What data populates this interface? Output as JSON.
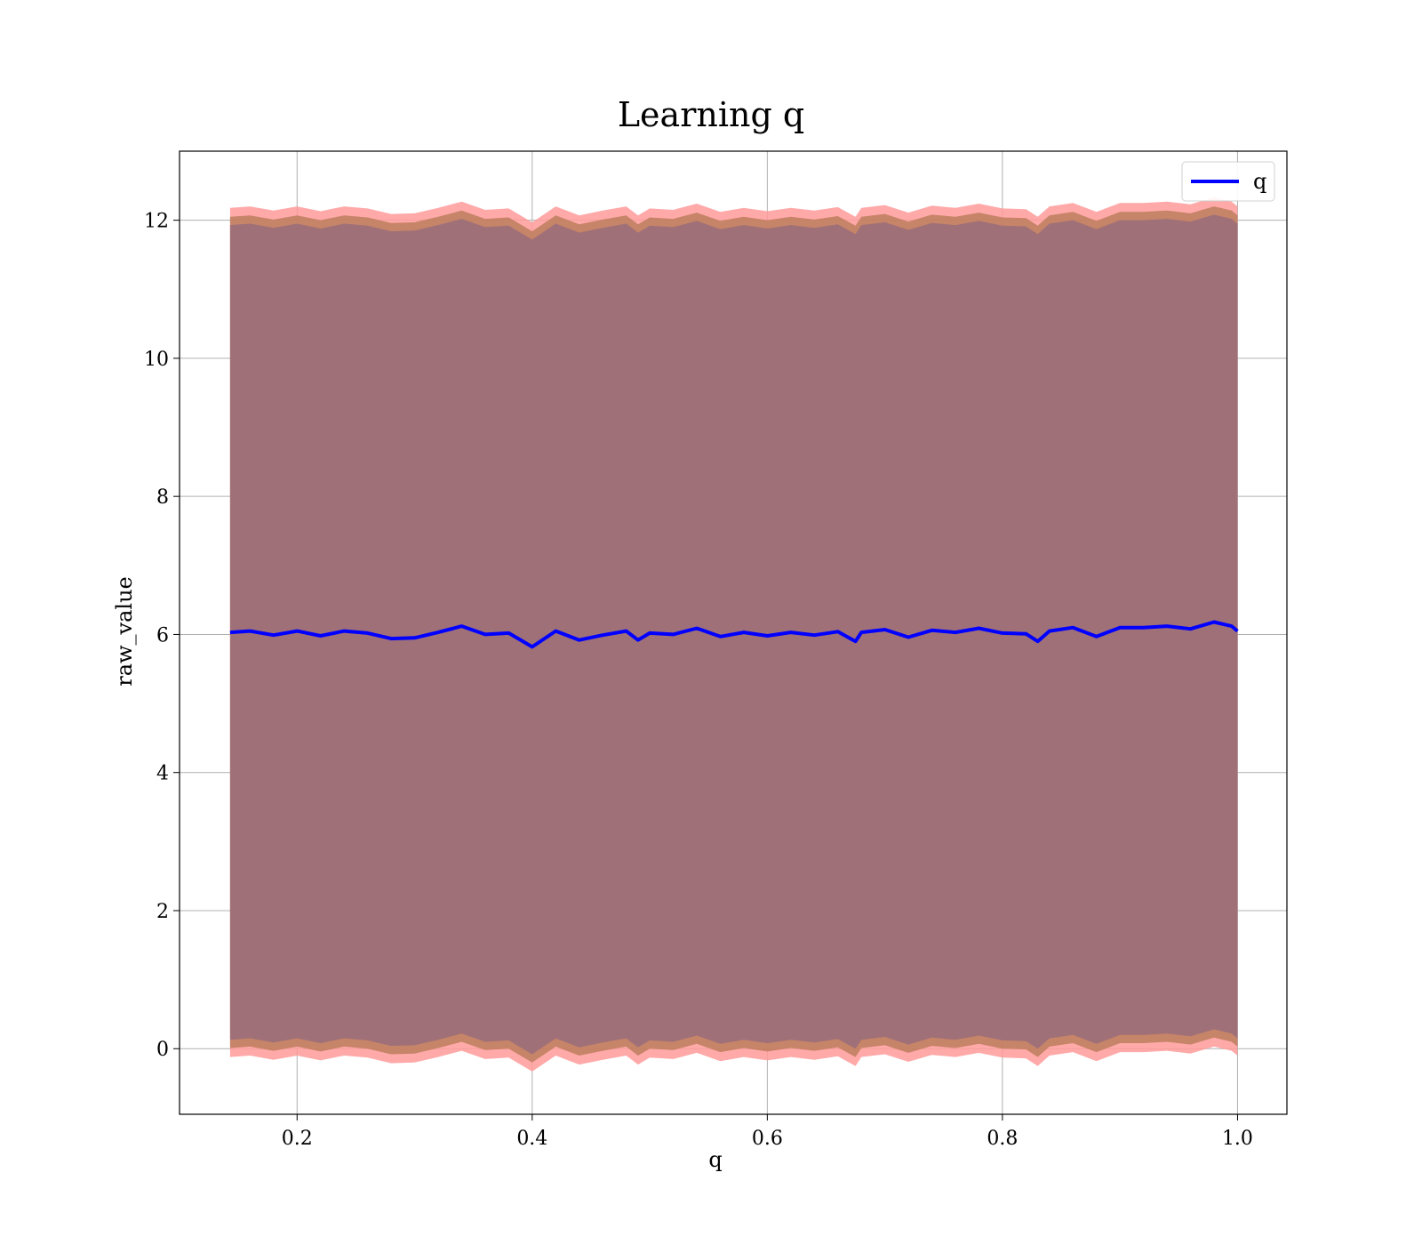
{
  "chart_data": {
    "type": "line",
    "title": "Learning q",
    "xlabel": "q",
    "ylabel": "raw_value",
    "xlim": [
      0.1,
      1.042
    ],
    "ylim": [
      -0.95,
      13.0
    ],
    "xticks": [
      0.2,
      0.4,
      0.6,
      0.8,
      1.0
    ],
    "xtick_labels": [
      "0.2",
      "0.4",
      "0.6",
      "0.8",
      "1.0"
    ],
    "yticks": [
      0,
      2,
      4,
      6,
      8,
      10,
      12
    ],
    "ytick_labels": [
      "0",
      "2",
      "4",
      "6",
      "8",
      "10",
      "12"
    ],
    "grid": true,
    "legend": {
      "position": "top-right",
      "entries": [
        "q"
      ]
    },
    "colors": {
      "line": "#0000ff",
      "outer_band": "#ff9a9a",
      "inner_band": "#c08060",
      "core_band": "#a07078"
    },
    "series": [
      {
        "name": "q",
        "x": [
          0.143,
          0.16,
          0.18,
          0.2,
          0.22,
          0.24,
          0.26,
          0.28,
          0.3,
          0.32,
          0.34,
          0.36,
          0.38,
          0.4,
          0.42,
          0.44,
          0.46,
          0.48,
          0.49,
          0.5,
          0.52,
          0.54,
          0.56,
          0.58,
          0.6,
          0.62,
          0.64,
          0.66,
          0.675,
          0.68,
          0.7,
          0.72,
          0.74,
          0.76,
          0.78,
          0.8,
          0.82,
          0.83,
          0.84,
          0.86,
          0.88,
          0.9,
          0.92,
          0.94,
          0.96,
          0.98,
          0.995,
          1.0
        ],
        "y": [
          6.03,
          6.05,
          5.99,
          6.05,
          5.98,
          6.05,
          6.02,
          5.94,
          5.95,
          6.03,
          6.12,
          6.0,
          6.02,
          5.82,
          6.05,
          5.92,
          5.99,
          6.05,
          5.92,
          6.02,
          6.0,
          6.09,
          5.97,
          6.03,
          5.98,
          6.03,
          5.99,
          6.04,
          5.9,
          6.03,
          6.07,
          5.96,
          6.06,
          6.03,
          6.09,
          6.02,
          6.01,
          5.9,
          6.05,
          6.1,
          5.97,
          6.1,
          6.1,
          6.12,
          6.08,
          6.18,
          6.12,
          6.05
        ],
        "band_outer_half_width": 6.15,
        "band_inner_half_width": 6.02,
        "band_core_half_width": 5.9
      }
    ]
  }
}
